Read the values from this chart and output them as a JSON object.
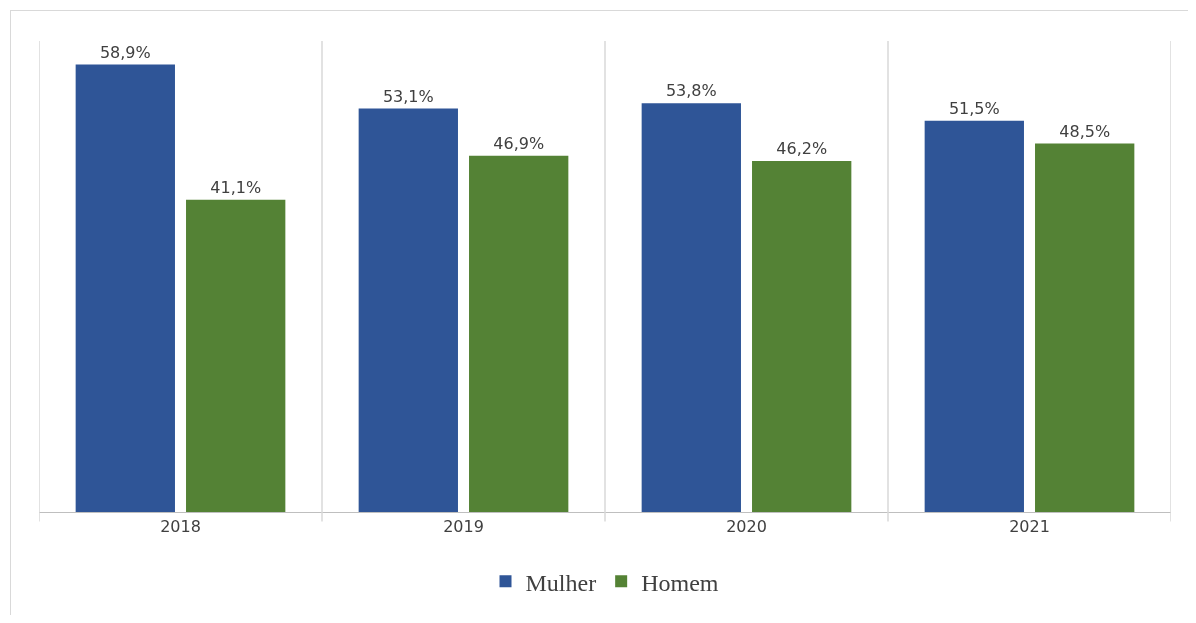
{
  "chart_data": {
    "type": "bar",
    "categories": [
      "2018",
      "2019",
      "2020",
      "2021"
    ],
    "series": [
      {
        "name": "Mulher",
        "color": "#2f5597",
        "values": [
          58.9,
          53.1,
          53.8,
          51.5
        ],
        "value_labels": [
          "58,9%",
          "53,1%",
          "53,8%",
          "51,5%"
        ]
      },
      {
        "name": "Homem",
        "color": "#548235",
        "values": [
          41.1,
          46.9,
          46.2,
          48.5
        ],
        "value_labels": [
          "41,1%",
          "46,9%",
          "46,2%",
          "48,5%"
        ]
      }
    ],
    "grid": "x",
    "legend": "bottom"
  }
}
